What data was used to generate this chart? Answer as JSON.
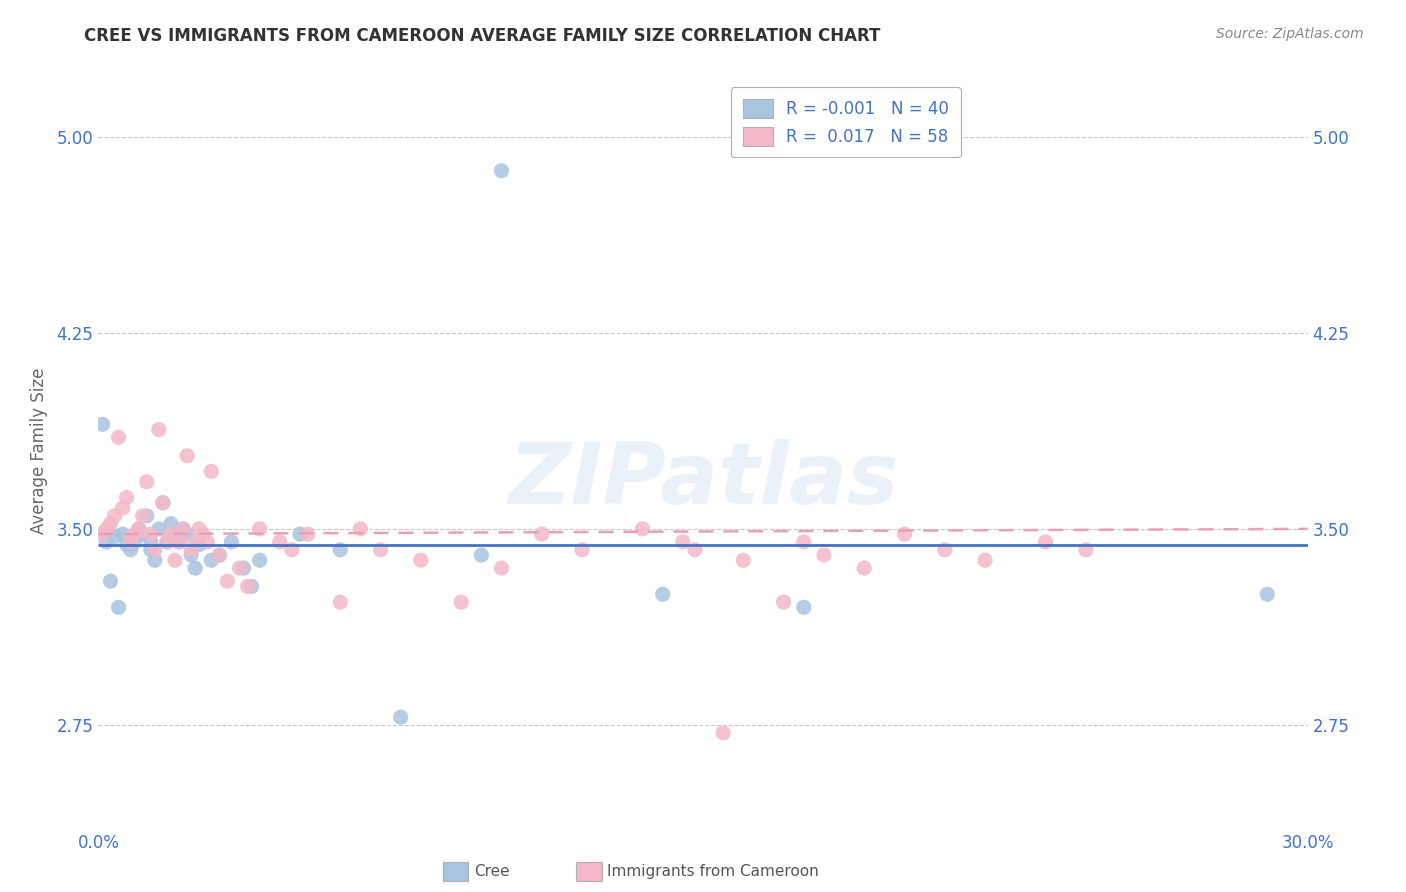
{
  "title": "CREE VS IMMIGRANTS FROM CAMEROON AVERAGE FAMILY SIZE CORRELATION CHART",
  "source": "Source: ZipAtlas.com",
  "ylabel": "Average Family Size",
  "yticks": [
    2.75,
    3.5,
    4.25,
    5.0
  ],
  "xlim": [
    0.0,
    0.3
  ],
  "ylim": [
    2.35,
    5.25
  ],
  "watermark": "ZIPatlas",
  "cree_color": "#a8c4e0",
  "cameroon_color": "#f4b8c8",
  "cree_line_color": "#4472c4",
  "cameroon_line_color": "#e8a0b8",
  "background_color": "#ffffff",
  "grid_color": "#c8c8c8",
  "text_color": "#4472c4",
  "legend_label_cree": "Cree",
  "legend_label_cameroon": "Immigrants from Cameroon",
  "cree_x": [
    0.001,
    0.002,
    0.003,
    0.004,
    0.005,
    0.006,
    0.007,
    0.008,
    0.009,
    0.01,
    0.011,
    0.012,
    0.013,
    0.013,
    0.014,
    0.015,
    0.016,
    0.017,
    0.018,
    0.019,
    0.02,
    0.021,
    0.022,
    0.023,
    0.024,
    0.025,
    0.028,
    0.03,
    0.033,
    0.036,
    0.038,
    0.04,
    0.05,
    0.06,
    0.075,
    0.095,
    0.1,
    0.14,
    0.175,
    0.29
  ],
  "cree_y": [
    3.9,
    3.45,
    3.3,
    3.47,
    3.2,
    3.48,
    3.44,
    3.42,
    3.45,
    3.5,
    3.48,
    3.55,
    3.42,
    3.45,
    3.38,
    3.5,
    3.6,
    3.45,
    3.52,
    3.48,
    3.45,
    3.5,
    3.48,
    3.4,
    3.35,
    3.44,
    3.38,
    3.4,
    3.45,
    3.35,
    3.28,
    3.38,
    3.48,
    3.42,
    2.78,
    3.4,
    4.87,
    3.25,
    3.2,
    3.25
  ],
  "cameroon_x": [
    0.001,
    0.002,
    0.003,
    0.004,
    0.005,
    0.006,
    0.007,
    0.008,
    0.009,
    0.01,
    0.011,
    0.012,
    0.013,
    0.014,
    0.015,
    0.016,
    0.017,
    0.018,
    0.019,
    0.02,
    0.021,
    0.022,
    0.023,
    0.024,
    0.025,
    0.026,
    0.027,
    0.028,
    0.03,
    0.032,
    0.035,
    0.037,
    0.04,
    0.045,
    0.048,
    0.052,
    0.06,
    0.065,
    0.07,
    0.08,
    0.09,
    0.1,
    0.11,
    0.12,
    0.135,
    0.145,
    0.148,
    0.155,
    0.16,
    0.17,
    0.175,
    0.18,
    0.19,
    0.2,
    0.21,
    0.22,
    0.235,
    0.245
  ],
  "cameroon_y": [
    3.48,
    3.5,
    3.52,
    3.55,
    3.85,
    3.58,
    3.62,
    3.45,
    3.48,
    3.5,
    3.55,
    3.68,
    3.48,
    3.42,
    3.88,
    3.6,
    3.45,
    3.48,
    3.38,
    3.45,
    3.5,
    3.78,
    3.42,
    3.45,
    3.5,
    3.48,
    3.45,
    3.72,
    3.4,
    3.3,
    3.35,
    3.28,
    3.5,
    3.45,
    3.42,
    3.48,
    3.22,
    3.5,
    3.42,
    3.38,
    3.22,
    3.35,
    3.48,
    3.42,
    3.5,
    3.45,
    3.42,
    2.72,
    3.38,
    3.22,
    3.45,
    3.4,
    3.35,
    3.48,
    3.42,
    3.38,
    3.45,
    3.42
  ],
  "cree_trend_y0": 3.44,
  "cree_trend_y1": 3.44,
  "cam_trend_y0": 3.48,
  "cam_trend_y1": 3.5
}
